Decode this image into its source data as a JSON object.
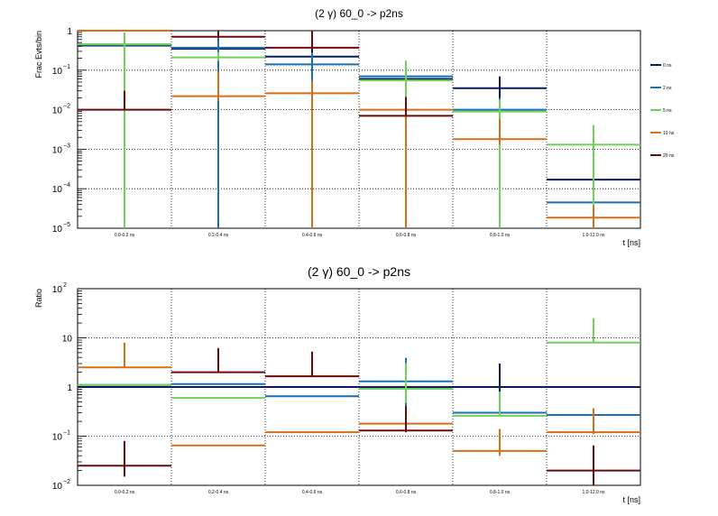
{
  "colors": {
    "0 ns": "#0b1c5c",
    "2 ns": "#1a6fb0",
    "5 ns": "#6fd05a",
    "10 ns": "#d4701c",
    "20 ns": "#6b0a0a"
  },
  "legend_placement": "right",
  "chart_data": [
    {
      "type": "histogram",
      "title": "(2 γ) 60_0 -> p2ns",
      "xlabel": "t [ns]",
      "ylabel": "Frac Evts/bin",
      "yscale": "log",
      "ylim": [
        1e-05,
        1
      ],
      "y_ticks": [
        {
          "value": 1,
          "base": "1",
          "exp": ""
        },
        {
          "value": 0.1,
          "base": "10",
          "exp": "−1"
        },
        {
          "value": 0.01,
          "base": "10",
          "exp": "−2"
        },
        {
          "value": 0.001,
          "base": "10",
          "exp": "−3"
        },
        {
          "value": 0.0001,
          "base": "10",
          "exp": "−4"
        },
        {
          "value": 1e-05,
          "base": "10",
          "exp": "−5"
        }
      ],
      "grid": true,
      "categories": [
        "0.0-0.2 ns",
        "0.2-0.4 ns",
        "0.4-0.6 ns",
        "0.6-0.8 ns",
        "0.8-1.0 ns",
        "1.0-12.0 ns"
      ],
      "series": [
        {
          "name": "0 ns",
          "values": [
            0.42,
            0.35,
            0.22,
            0.06,
            0.035,
            0.00017
          ],
          "errors": [
            [
              0.42,
              0.42
            ],
            [
              0.35,
              0.35
            ],
            [
              0.22,
              0.22
            ],
            [
              0.06,
              0.06
            ],
            [
              0.035,
              0.035
            ],
            [
              0.00017,
              0.00017
            ]
          ]
        },
        {
          "name": "2 ns",
          "values": [
            0.45,
            0.37,
            0.14,
            0.07,
            0.01,
            4.5e-05
          ],
          "errors": [
            [
              0.45,
              0.45
            ],
            [
              0.37,
              0.37
            ],
            [
              0.14,
              0.14
            ],
            [
              0.07,
              0.07
            ],
            [
              0.01,
              0.01
            ],
            [
              4.5e-05,
              4.5e-05
            ]
          ]
        },
        {
          "name": "5 ns",
          "values": [
            0.45,
            0.21,
            null,
            0.055,
            0.009,
            0.0013
          ],
          "errors": [
            [
              0.45,
              0.45
            ],
            [
              0.04,
              0.08
            ],
            [
              null,
              null
            ],
            [
              0.055,
              0.12
            ],
            [
              0.009,
              0.009
            ],
            [
              0.0013,
              0.0028
            ]
          ]
        },
        {
          "name": "10 ns",
          "values": [
            1.0,
            0.022,
            0.026,
            0.01,
            0.0018,
            1.85e-05
          ],
          "errors": [
            [
              1e-06,
              1.0
            ],
            [
              0.005,
              0.07
            ],
            [
              0.026,
              0.026
            ],
            [
              0.01,
              0.01
            ],
            [
              0.0005,
              0.004
            ],
            [
              1.85e-05,
              1.85e-05
            ]
          ]
        },
        {
          "name": "20 ns",
          "values": [
            0.01,
            0.7,
            0.37,
            0.007,
            null,
            null
          ],
          "errors": [
            [
              1e-06,
              0.02
            ],
            [
              1e-06,
              1.0
            ],
            [
              1e-06,
              0.7
            ],
            [
              1e-06,
              0.014
            ],
            [
              null,
              null
            ],
            [
              null,
              null
            ]
          ]
        }
      ]
    },
    {
      "type": "histogram",
      "title": "(2 γ) 60_0 -> p2ns",
      "xlabel": "t [ns]",
      "ylabel": "Ratio",
      "yscale": "log",
      "ylim": [
        0.01,
        100
      ],
      "y_ticks": [
        {
          "value": 100,
          "base": "10",
          "exp": "2"
        },
        {
          "value": 10,
          "base": "10",
          "exp": ""
        },
        {
          "value": 1,
          "base": "1",
          "exp": ""
        },
        {
          "value": 0.1,
          "base": "10",
          "exp": "−1"
        },
        {
          "value": 0.01,
          "base": "10",
          "exp": "−2"
        }
      ],
      "grid": true,
      "categories": [
        "0.0-0.2 ns",
        "0.2-0.4 ns",
        "0.4-0.6 ns",
        "0.6-0.8 ns",
        "0.8-1.0 ns",
        "1.0-12.0 ns"
      ],
      "series": [
        {
          "name": "0 ns",
          "values": [
            1,
            1,
            1,
            1,
            1,
            1
          ],
          "errors": [
            [
              null,
              null
            ],
            [
              null,
              null
            ],
            [
              null,
              null
            ],
            [
              null,
              null
            ],
            [
              0.45,
              2.0
            ],
            [
              null,
              null
            ]
          ]
        },
        {
          "name": "2 ns",
          "values": [
            1.1,
            1.15,
            0.65,
            1.3,
            0.3,
            0.27
          ],
          "errors": [
            [
              null,
              null
            ],
            [
              null,
              null
            ],
            [
              null,
              null
            ],
            [
              0.95,
              2.6
            ],
            [
              null,
              null
            ],
            [
              null,
              null
            ]
          ]
        },
        {
          "name": "5 ns",
          "values": [
            1.1,
            0.6,
            null,
            0.92,
            0.26,
            8.0
          ],
          "errors": [
            [
              null,
              null
            ],
            [
              null,
              null
            ],
            [
              null,
              null
            ],
            [
              0.45,
              2.2
            ],
            [
              0.01,
              0.55
            ],
            [
              0.01,
              17.0
            ]
          ]
        },
        {
          "name": "10 ns",
          "values": [
            2.5,
            0.065,
            0.12,
            0.18,
            0.05,
            0.12
          ],
          "errors": [
            [
              0.01,
              5.5
            ],
            [
              null,
              null
            ],
            [
              null,
              null
            ],
            [
              null,
              null
            ],
            [
              0.01,
              0.09
            ],
            [
              0.01,
              0.25
            ]
          ]
        },
        {
          "name": "20 ns",
          "values": [
            0.025,
            2.0,
            1.65,
            0.13,
            null,
            0.02
          ],
          "errors": [
            [
              0.01,
              0.055
            ],
            [
              0.01,
              4.2
            ],
            [
              0.01,
              3.6
            ],
            [
              0.01,
              0.28
            ],
            [
              null,
              null
            ],
            [
              0.01,
              0.045
            ]
          ]
        }
      ]
    }
  ]
}
